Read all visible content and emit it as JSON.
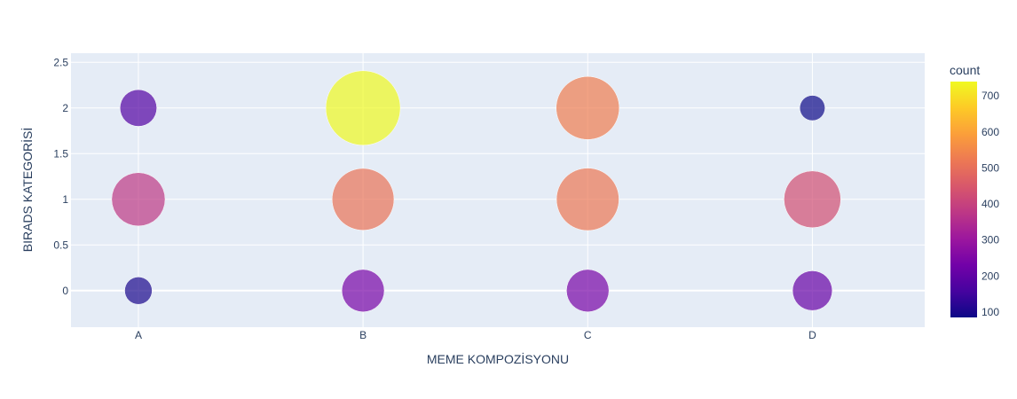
{
  "chart_data": {
    "type": "scatter",
    "xlabel": "MEME KOMPOZİSYONU",
    "ylabel": "BIRADS KATEGORİSİ",
    "categories": [
      "A",
      "B",
      "C",
      "D"
    ],
    "y_ticks": [
      "0",
      "0.5",
      "1",
      "1.5",
      "2",
      "2.5"
    ],
    "y_tick_values": [
      0,
      0.5,
      1,
      1.5,
      2,
      2.5
    ],
    "ylim": [
      -0.4,
      2.6
    ],
    "grid": true,
    "colorbar": {
      "title": "count",
      "ticks": [
        "100",
        "200",
        "300",
        "400",
        "500",
        "600",
        "700"
      ],
      "tick_values": [
        100,
        200,
        300,
        400,
        500,
        600,
        700
      ],
      "range": [
        85,
        740
      ],
      "colors": [
        "#0d0887",
        "#46039f",
        "#7201a8",
        "#9c179e",
        "#bd3786",
        "#d8576b",
        "#ed7953",
        "#fb9f3a",
        "#fdca26",
        "#f0f921"
      ]
    },
    "points": [
      {
        "x": "A",
        "y": 0,
        "count": 100
      },
      {
        "x": "A",
        "y": 1,
        "count": 380
      },
      {
        "x": "A",
        "y": 2,
        "count": 180
      },
      {
        "x": "B",
        "y": 0,
        "count": 240
      },
      {
        "x": "B",
        "y": 1,
        "count": 510
      },
      {
        "x": "B",
        "y": 2,
        "count": 740
      },
      {
        "x": "C",
        "y": 0,
        "count": 240
      },
      {
        "x": "C",
        "y": 1,
        "count": 520
      },
      {
        "x": "C",
        "y": 2,
        "count": 530
      },
      {
        "x": "D",
        "y": 0,
        "count": 210
      },
      {
        "x": "D",
        "y": 1,
        "count": 430
      },
      {
        "x": "D",
        "y": 2,
        "count": 85
      }
    ]
  }
}
